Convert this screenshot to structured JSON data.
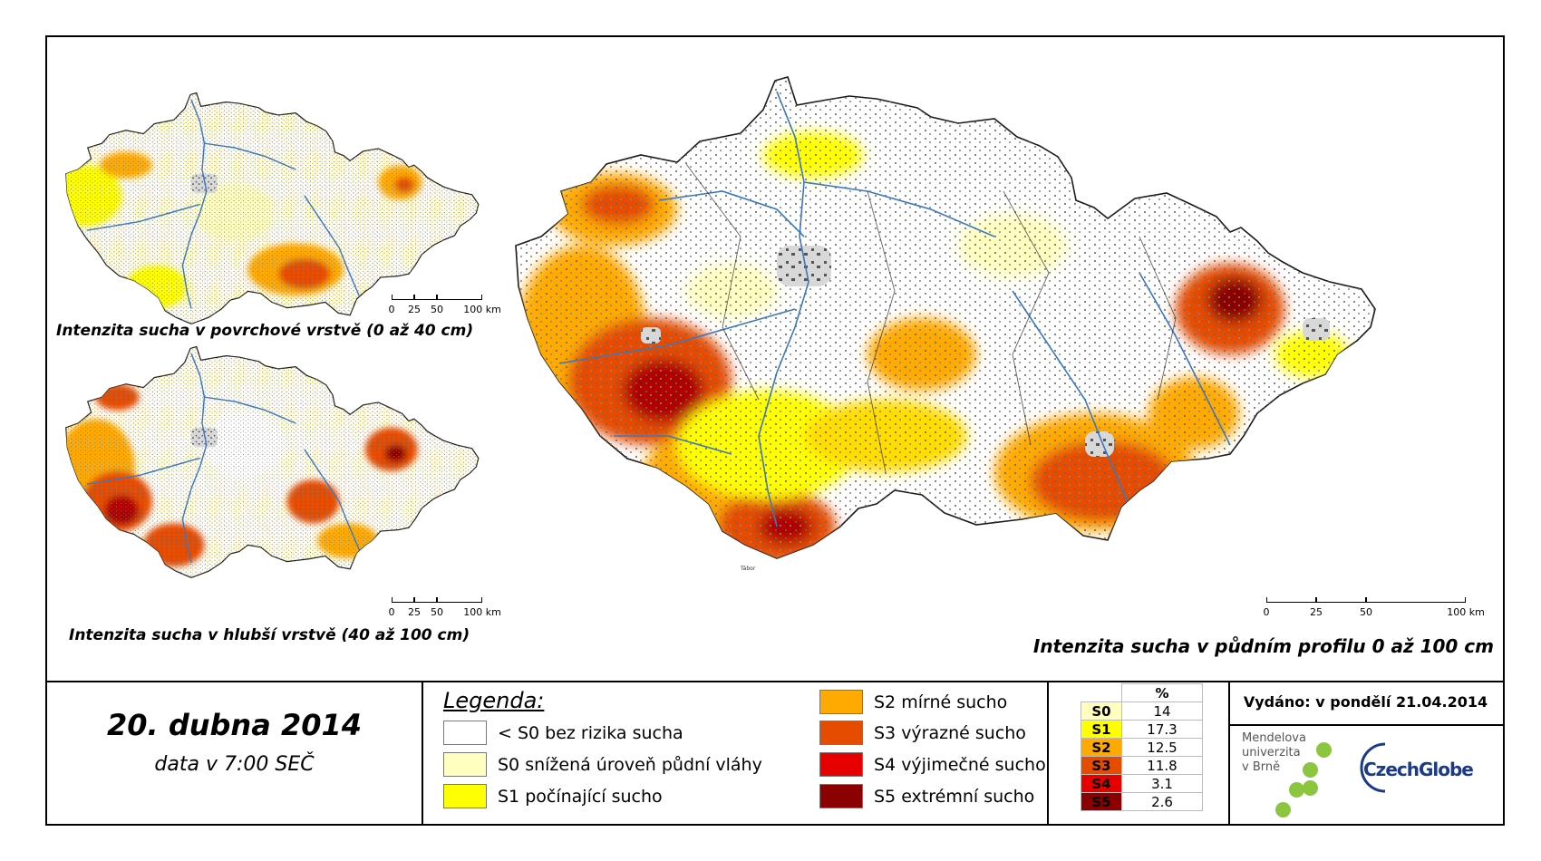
{
  "maps": {
    "surface": {
      "title": "Intenzita sucha v povrchové vrstvě (0 až 40 cm)"
    },
    "deep": {
      "title": "Intenzita sucha v hlubší vrstvě (40 až 100 cm)"
    },
    "profile": {
      "title": "Intenzita sucha v půdním profilu 0 až 100 cm"
    },
    "city_label": "Tábor",
    "scale_labels": [
      "0",
      "25",
      "50",
      "100 km"
    ]
  },
  "date": {
    "title": "20. dubna 2014",
    "subtitle": "data v 7:00 SEČ"
  },
  "legend": {
    "heading": "Legenda:",
    "items": [
      {
        "label": "< S0 bez rizika sucha",
        "color": "#ffffff"
      },
      {
        "label": "S0 snížená úroveň půdní vláhy",
        "color": "#ffffc0"
      },
      {
        "label": "S1 počínající sucho",
        "color": "#ffff00"
      },
      {
        "label": "S2 mírné sucho",
        "color": "#ffaa00"
      },
      {
        "label": "S3 výrazné sucho",
        "color": "#e64c00"
      },
      {
        "label": "S4 výjimečné sucho",
        "color": "#e60000"
      },
      {
        "label": "S5 extrémní sucho",
        "color": "#8b0000"
      }
    ]
  },
  "percent_table": {
    "header": "%",
    "rows": [
      {
        "cls": "S0",
        "value": "14",
        "color": "#ffffc0"
      },
      {
        "cls": "S1",
        "value": "17.3",
        "color": "#ffff00"
      },
      {
        "cls": "S2",
        "value": "12.5",
        "color": "#ffaa00"
      },
      {
        "cls": "S3",
        "value": "11.8",
        "color": "#e64c00"
      },
      {
        "cls": "S4",
        "value": "3.1",
        "color": "#e60000"
      },
      {
        "cls": "S5",
        "value": "2.6",
        "color": "#8b0000"
      }
    ]
  },
  "issued": "Vydáno: v pondělí 21.04.2014",
  "logos": {
    "mendel_lines": [
      "Mendelova",
      "univerzita",
      "v Brně"
    ],
    "czechglobe": "CzechGlobe"
  },
  "colors": {
    "frame": "#000000",
    "river": "#3a78c2",
    "urban": "#555555",
    "logo_green": "#8cc63f",
    "logo_blue": "#1a3a8a"
  }
}
